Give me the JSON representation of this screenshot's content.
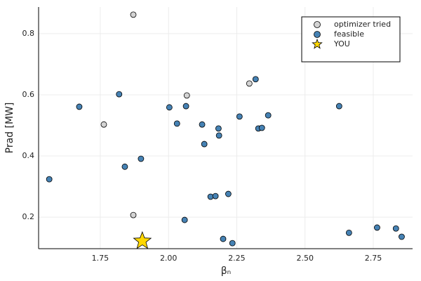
{
  "chart_data": {
    "type": "scatter",
    "xlabel": "βₙ",
    "ylabel": "Prad [MW]",
    "xlim": [
      1.524,
      2.894
    ],
    "ylim": [
      0.097,
      0.887
    ],
    "xticks": [
      {
        "value": 1.75,
        "label": "1.75"
      },
      {
        "value": 2.0,
        "label": "2.00"
      },
      {
        "value": 2.25,
        "label": "2.25"
      },
      {
        "value": 2.5,
        "label": "2.50"
      },
      {
        "value": 2.75,
        "label": "2.75"
      }
    ],
    "yticks": [
      0.2,
      0.4,
      0.6,
      0.8
    ],
    "grid": true,
    "legend": "top-right",
    "series": [
      {
        "name": "optimizer tried",
        "color": "#d3d3d3",
        "marker": "circle",
        "x": [
          1.871,
          1.763,
          2.067,
          2.296,
          1.871
        ],
        "values": [
          0.862,
          0.503,
          0.598,
          0.637,
          0.207
        ]
      },
      {
        "name": "feasible",
        "color": "#4682b4",
        "marker": "circle",
        "x": [
          1.563,
          1.673,
          1.819,
          1.84,
          1.899,
          2.003,
          2.031,
          2.064,
          2.123,
          2.131,
          2.183,
          2.185,
          2.154,
          2.172,
          2.219,
          2.059,
          2.2,
          2.234,
          2.26,
          2.319,
          2.329,
          2.342,
          2.365,
          2.625,
          2.661,
          2.764,
          2.833,
          2.854
        ],
        "values": [
          0.324,
          0.561,
          0.602,
          0.365,
          0.391,
          0.559,
          0.506,
          0.563,
          0.503,
          0.439,
          0.49,
          0.467,
          0.267,
          0.269,
          0.276,
          0.191,
          0.129,
          0.115,
          0.529,
          0.651,
          0.49,
          0.492,
          0.533,
          0.563,
          0.149,
          0.166,
          0.163,
          0.136
        ]
      },
      {
        "name": "YOU",
        "color": "#ffd700",
        "marker": "star",
        "x": [
          1.904
        ],
        "values": [
          0.122
        ]
      }
    ]
  }
}
